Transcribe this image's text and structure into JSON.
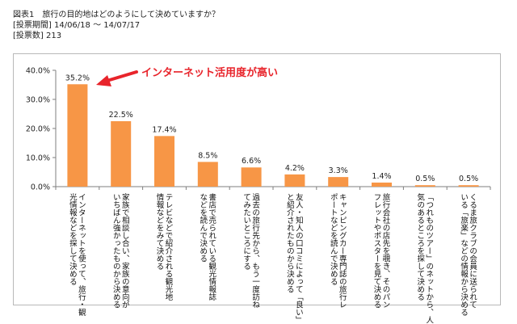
{
  "header": {
    "title": "図表1　旅行の目的地はどのようにして決めていますか？",
    "period": "[投票期間] 14/06/18 ～ 14/07/17",
    "count": "[投票数] 213"
  },
  "chart_data": {
    "type": "bar",
    "categories": [
      "インターネットを使って、旅行・観光情報などを探して決める",
      "家族で相談し合い、家族の意向がいちばん強かったものから決める",
      "テレビなどで紹介される観光地情報などをみて決める",
      "書店で売られている観光情報誌などを読んで決める",
      "過去の旅行先から、もう一度訪ねてみたいところにする",
      "友人・知人の口コミによって「良い」と紹介されたものから決める",
      "キャンピングカー専門誌の旅行レポートなどを読んで決める",
      "旅行会社の店先を覗き、そのパンフレットやポスターを見て決める",
      "「つれものツアー」のネットから、人気のあるところを探して決める",
      "くるま旅クラブの会員に送られている「旅楽」などの情報から決める"
    ],
    "x_tick_lines": [
      [
        "インターネットを使って、旅行・観",
        "光情報などを探して決める"
      ],
      [
        "家族で相談し合い、家族の意向が",
        "いちばん強かったものから決める"
      ],
      [
        "テレビなどで紹介される観光地",
        "情報などをみて決める"
      ],
      [
        "書店で売られている観光情報誌",
        "などを読んで決める"
      ],
      [
        "過去の旅行先から、もう一度訪ね",
        "てみたいところにする"
      ],
      [
        "友人・知人の口コミによって「良い」",
        "と紹介されたものから決める"
      ],
      [
        "キャンピングカー専門誌の旅行レ",
        "ポートなどを読んで決める"
      ],
      [
        "旅行会社の店先を覗き、そのパン",
        "フレットやポスターを見て決める"
      ],
      [
        "「つれものツアー」のネットから、人",
        "気のあるところを探して決める"
      ],
      [
        "くるま旅クラブの会員に送られて",
        "いる「旅楽」などの情報から決める"
      ]
    ],
    "values": [
      35.2,
      22.5,
      17.4,
      8.5,
      6.6,
      4.2,
      3.3,
      1.4,
      0.5,
      0.5
    ],
    "value_labels": [
      "35.2%",
      "22.5%",
      "17.4%",
      "8.5%",
      "6.6%",
      "4.2%",
      "3.3%",
      "1.4%",
      "0.5%",
      "0.5%"
    ],
    "ylim": [
      0,
      40
    ],
    "yticks": [
      0,
      10,
      20,
      30,
      40
    ],
    "ytick_labels": [
      "0.0%",
      "10.0%",
      "20.0%",
      "30.0%",
      "40.0%"
    ],
    "annotation": "インターネット活用度が高い",
    "bar_color": "#f79646",
    "annotation_color": "#e8242b",
    "grid": false
  }
}
